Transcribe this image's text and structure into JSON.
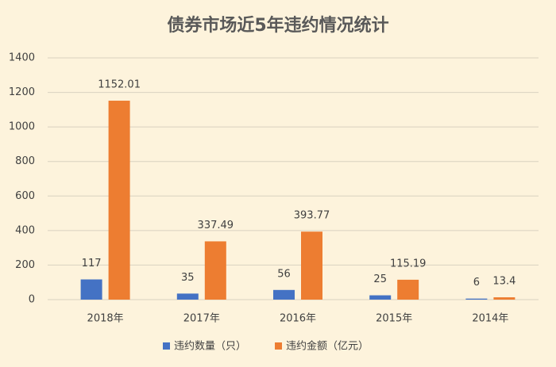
{
  "chart_data": {
    "type": "bar",
    "title": "债券市场近5年违约情况统计",
    "categories": [
      "2018年",
      "2017年",
      "2016年",
      "2015年",
      "2014年"
    ],
    "series": [
      {
        "name": "违约数量（只）",
        "color": "#4472c4",
        "values": [
          117,
          35,
          56,
          25,
          6
        ]
      },
      {
        "name": "违约金额（亿元）",
        "color": "#ed7d31",
        "values": [
          1152.01,
          337.49,
          393.77,
          115.19,
          13.4
        ]
      }
    ],
    "ylim": [
      0,
      1400
    ],
    "yticks": [
      0,
      200,
      400,
      600,
      800,
      1000,
      1200,
      1400
    ],
    "grid": true,
    "legend": "bottom"
  }
}
